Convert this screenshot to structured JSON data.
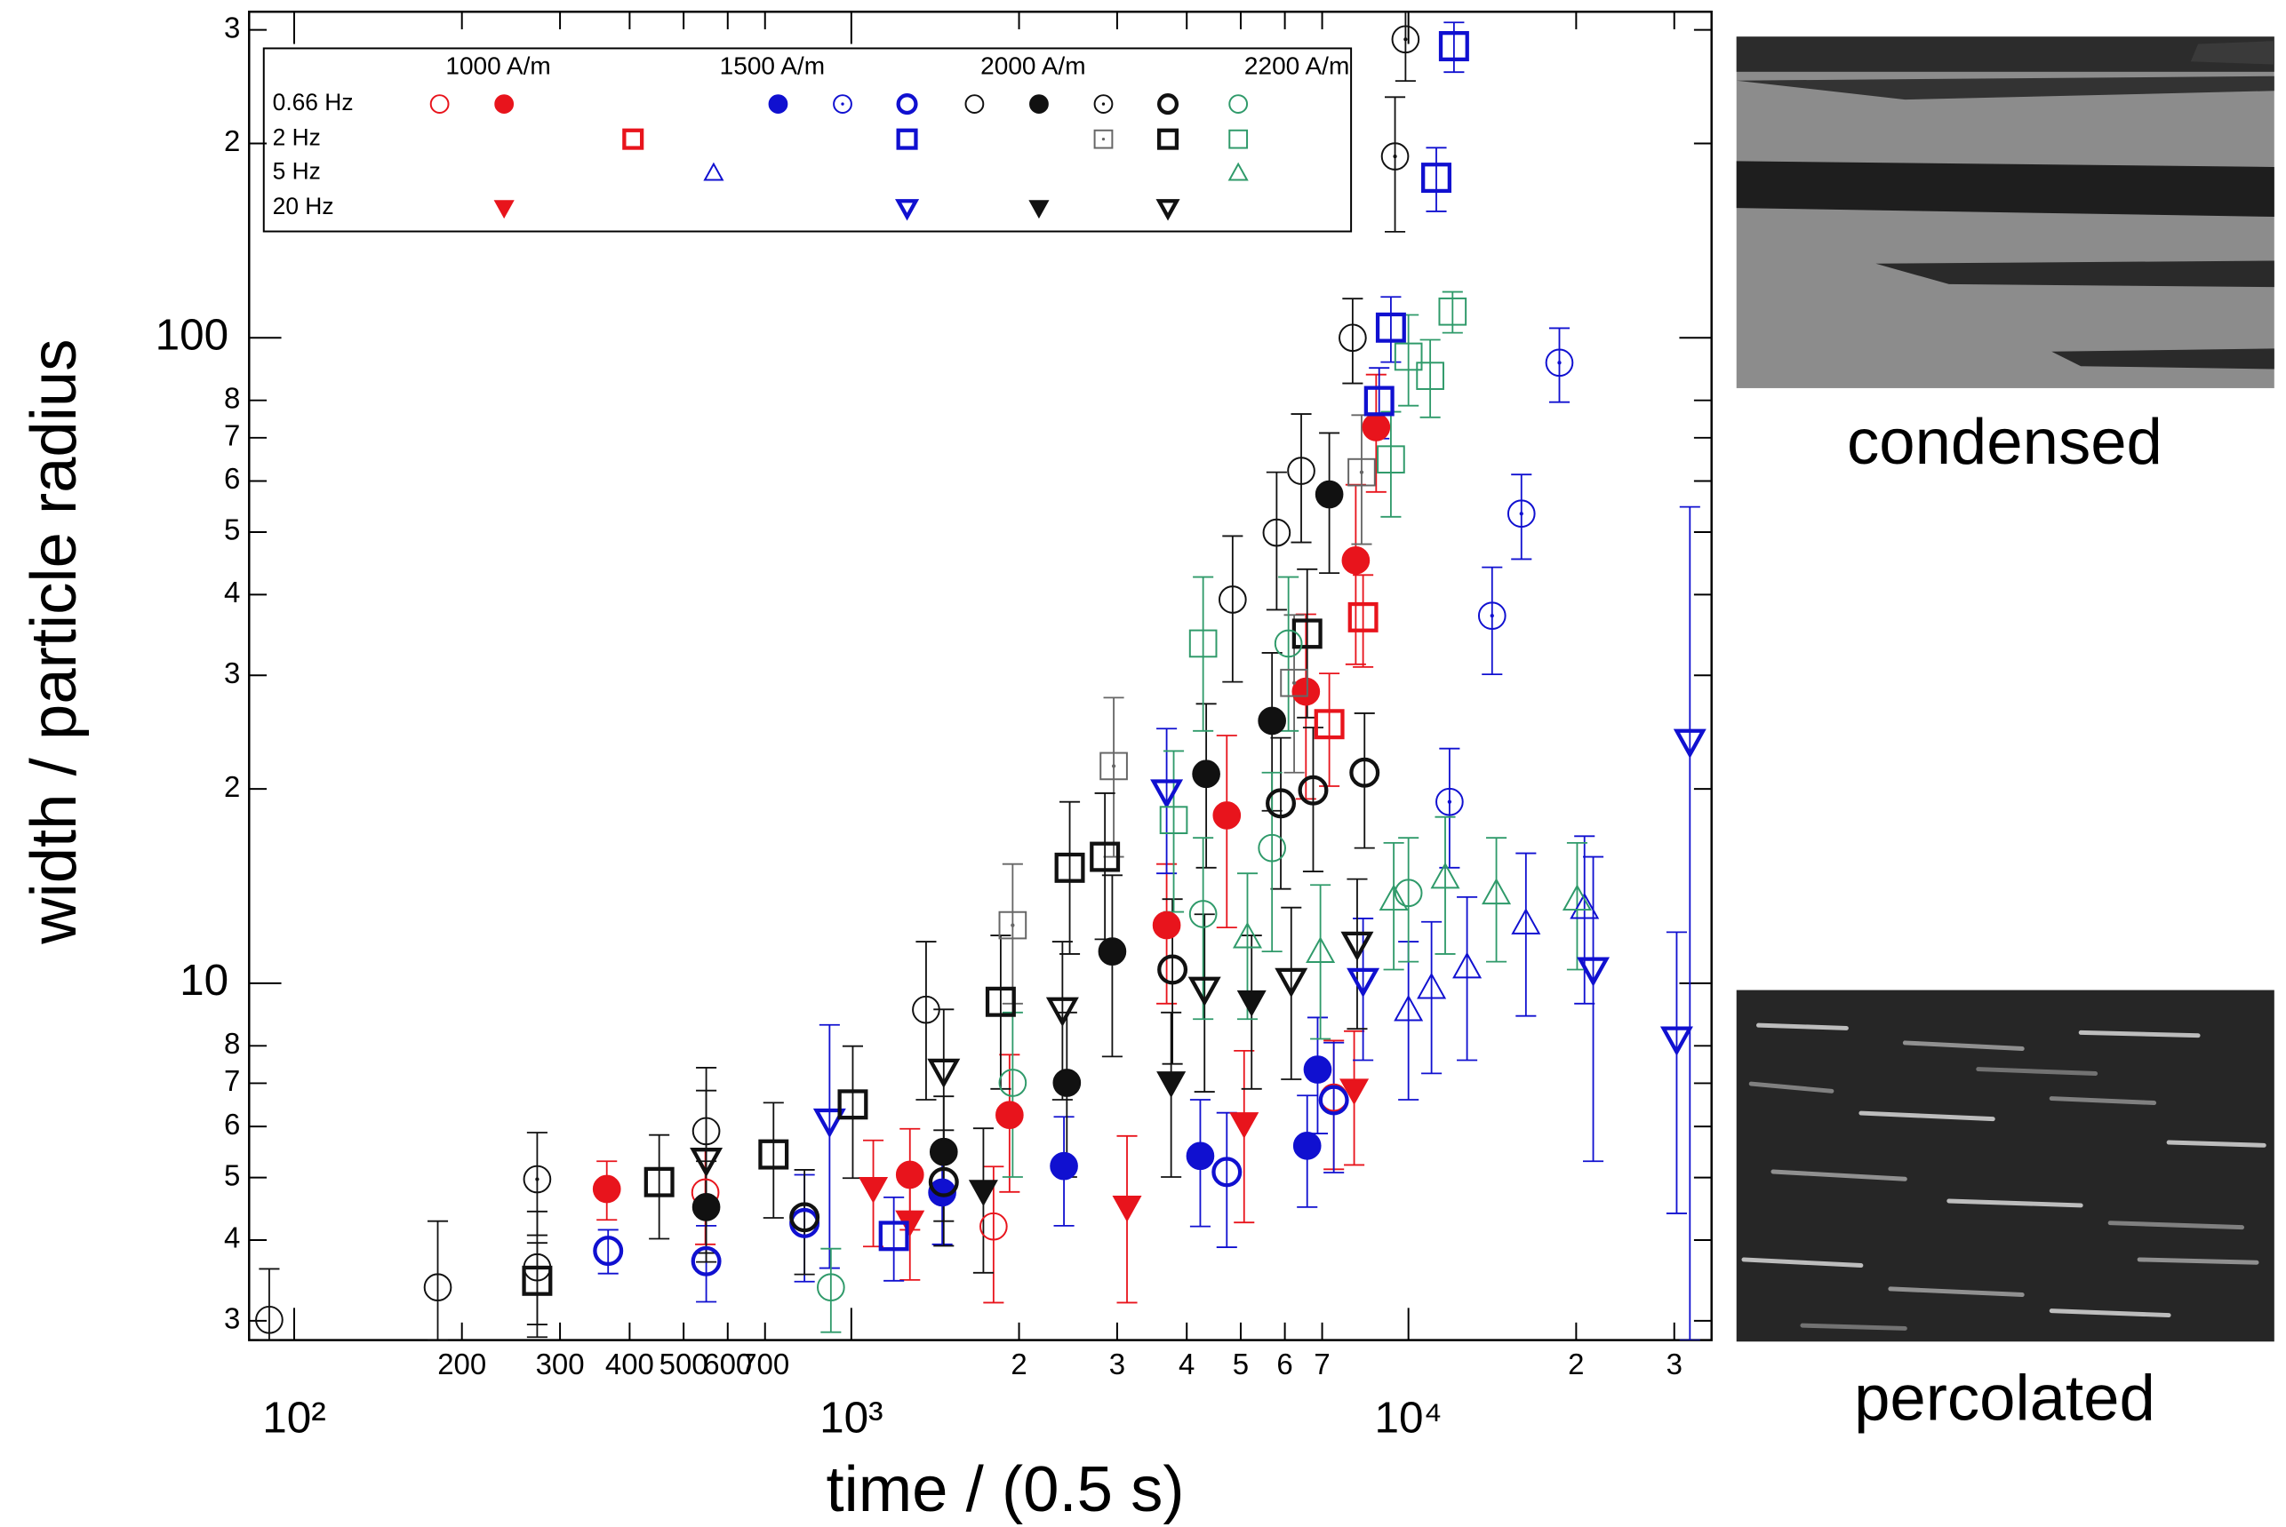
{
  "chart_data": {
    "type": "scatter",
    "x_label": "time / (0.5 s)",
    "y_label": "width / particle radius",
    "xscale": "log",
    "yscale": "log",
    "xlim": [
      83,
      35000
    ],
    "ylim": [
      2.8,
      320
    ],
    "xticks": [
      {
        "value": 100,
        "label": "10²"
      },
      200,
      300,
      400,
      500,
      600,
      700,
      {
        "value": 1000,
        "label": "10³"
      },
      {
        "value": 2000,
        "label": "2"
      },
      {
        "value": 3000,
        "label": "3"
      },
      {
        "value": 4000,
        "label": "4"
      },
      {
        "value": 5000,
        "label": "5"
      },
      {
        "value": 6000,
        "label": "6"
      },
      {
        "value": 7000,
        "label": "7"
      },
      {
        "value": 10000,
        "label": "10⁴"
      },
      {
        "value": 20000,
        "label": "2"
      },
      {
        "value": 30000,
        "label": "3"
      }
    ],
    "yticks": [
      3,
      4,
      5,
      6,
      7,
      8,
      10,
      {
        "value": 20,
        "label": "2"
      },
      {
        "value": 30,
        "label": "3"
      },
      {
        "value": 40,
        "label": "4"
      },
      {
        "value": 50,
        "label": "5"
      },
      {
        "value": 60,
        "label": "6"
      },
      {
        "value": 70,
        "label": "7"
      },
      {
        "value": 80,
        "label": "8"
      },
      100,
      {
        "value": 200,
        "label": "2"
      },
      {
        "value": 300,
        "label": "3"
      }
    ],
    "legend": {
      "fields": [
        "1000 A/m",
        "1500 A/m",
        "2000 A/m",
        "2200 A/m"
      ],
      "frequencies": [
        "0.66 Hz",
        "2 Hz",
        "5 Hz",
        "20 Hz"
      ]
    },
    "series": [
      {
        "field": "1000 A/m",
        "frequency": "0.66 Hz",
        "marker": "circle",
        "style": "filled",
        "color": "#e8141c",
        "x": [
          364,
          1274,
          1923,
          3681,
          4720,
          6546,
          8043,
          8750
        ],
        "values": [
          4.8,
          5.05,
          6.25,
          12.3,
          18.2,
          28.3,
          45.2,
          72.7
        ],
        "errors": [
          0.5,
          0.9,
          1.5,
          3,
          6,
          9,
          14,
          15
        ]
      },
      {
        "field": "1000 A/m",
        "frequency": "0.66 Hz",
        "marker": "circle",
        "style": "thin",
        "color": "#e8141c",
        "x": [
          547,
          1800,
          7345
        ],
        "values": [
          4.74,
          4.2,
          6.65
        ],
        "errors": [
          0.8,
          1.0,
          1.5
        ]
      },
      {
        "field": "1000 A/m",
        "frequency": "2 Hz",
        "marker": "square",
        "style": "bold",
        "color": "#e8141c",
        "x": [
          8290,
          7210
        ],
        "values": [
          36.9,
          25.2
        ],
        "errors": [
          6,
          5
        ]
      },
      {
        "field": "1000 A/m",
        "frequency": "20 Hz",
        "marker": "tri-down",
        "style": "filled",
        "color": "#e8141c",
        "x": [
          1095,
          1274,
          3125,
          5070,
          7990
        ],
        "values": [
          4.81,
          4.27,
          4.5,
          6.06,
          6.83
        ],
        "errors": [
          0.9,
          0.8,
          1.3,
          1.8,
          1.6
        ]
      },
      {
        "field": "1500 A/m",
        "frequency": "0.66 Hz",
        "marker": "circle",
        "style": "filled",
        "color": "#1010d0",
        "x": [
          1456,
          2408,
          4230,
          6580,
          6870
        ],
        "values": [
          4.74,
          5.21,
          5.4,
          5.6,
          7.35
        ],
        "errors": [
          0.8,
          1.0,
          1.2,
          1.1,
          1.5
        ]
      },
      {
        "field": "1500 A/m",
        "frequency": "0.66 Hz",
        "marker": "circle",
        "style": "dot",
        "color": "#1010d0",
        "x": [
          18660,
          15950,
          14130,
          11850
        ],
        "values": [
          91.5,
          53.4,
          37.1,
          19.1
        ],
        "errors": [
          12,
          8,
          7,
          4
        ]
      },
      {
        "field": "1500 A/m",
        "frequency": "0.66 Hz",
        "marker": "circle",
        "style": "bold",
        "color": "#1010d0",
        "x": [
          366,
          549,
          824,
          4720,
          7345
        ],
        "values": [
          3.85,
          3.71,
          4.25,
          5.1,
          6.59
        ],
        "errors": [
          0.3,
          0.5,
          0.8,
          1.2,
          1.5
        ]
      },
      {
        "field": "1500 A/m",
        "frequency": "2 Hz",
        "marker": "square",
        "style": "bold",
        "color": "#1010d0",
        "x": [
          9300,
          11220,
          12070,
          8860,
          1192
        ],
        "values": [
          103.7,
          177,
          283,
          79.8,
          4.06
        ],
        "errors": [
          12,
          20,
          25,
          10,
          0.6
        ]
      },
      {
        "field": "1500 A/m",
        "frequency": "5 Hz",
        "marker": "tri-up",
        "style": "thin",
        "color": "#1010d0",
        "x": [
          10000,
          12740,
          16250,
          20700,
          11000
        ],
        "values": [
          9.1,
          10.6,
          12.4,
          13.1,
          9.85
        ],
        "errors": [
          2.5,
          3,
          3.5,
          3.8,
          2.6
        ]
      },
      {
        "field": "1500 A/m",
        "frequency": "20 Hz",
        "marker": "tri-down",
        "style": "bold",
        "color": "#1010d0",
        "x": [
          32000,
          30300,
          21460,
          8290,
          914,
          3681
        ],
        "values": [
          23.7,
          8.2,
          10.5,
          10.1,
          6.12,
          19.8
        ],
        "errors": [
          31,
          3.8,
          5.2,
          2.5,
          2.5,
          5
        ]
      },
      {
        "field": "2000 A/m",
        "frequency": "0.66 Hz",
        "marker": "circle",
        "style": "thin",
        "color": "#111111",
        "x": [
          90.2,
          181,
          273,
          549,
          1362,
          4835,
          5800,
          6420,
          7940
        ],
        "values": [
          3.01,
          3.38,
          3.63,
          5.9,
          9.1,
          39.3,
          49.9,
          62.2,
          100
        ],
        "errors": [
          0.6,
          0.9,
          0.8,
          1.5,
          2.5,
          10,
          12,
          14,
          15
        ]
      },
      {
        "field": "2000 A/m",
        "frequency": "0.66 Hz",
        "marker": "circle",
        "style": "filled",
        "color": "#111111",
        "x": [
          549,
          1465,
          2437,
          2940,
          4335,
          5690,
          7210
        ],
        "values": [
          4.5,
          5.48,
          7.01,
          11.2,
          21.1,
          25.5,
          57.2
        ],
        "errors": [
          0.8,
          1.2,
          2,
          3.5,
          6,
          7,
          14
        ]
      },
      {
        "field": "2000 A/m",
        "frequency": "0.66 Hz",
        "marker": "circle",
        "style": "dot",
        "color": "#111111",
        "x": [
          273,
          9880,
          9460
        ],
        "values": [
          4.97,
          290,
          191
        ],
        "errors": [
          0.9,
          40,
          45
        ]
      },
      {
        "field": "2000 A/m",
        "frequency": "0.66 Hz",
        "marker": "circle",
        "style": "bold",
        "color": "#111111",
        "x": [
          824,
          1465,
          3770,
          5900,
          6745,
          8340
        ],
        "values": [
          4.34,
          4.92,
          10.5,
          19,
          19.9,
          21.2
        ],
        "errors": [
          0.8,
          1.0,
          3,
          5,
          5,
          5
        ]
      },
      {
        "field": "2000 A/m",
        "frequency": "2 Hz",
        "marker": "square",
        "style": "dot",
        "color": "#666666",
        "x": [
          2958,
          6235,
          8240,
          1948
        ],
        "values": [
          21.7,
          29.2,
          61.9,
          12.3
        ],
        "errors": [
          6,
          8,
          14,
          3
        ]
      },
      {
        "field": "2000 A/m",
        "frequency": "2 Hz",
        "marker": "square",
        "style": "bold",
        "color": "#111111",
        "x": [
          273,
          452,
          725,
          1006,
          2466,
          2852,
          6580,
          1854
        ],
        "values": [
          3.46,
          4.92,
          5.43,
          6.49,
          15.1,
          15.7,
          34.8,
          9.36
        ],
        "errors": [
          0.5,
          0.9,
          1.1,
          1.5,
          4,
          4,
          9,
          2.5
        ]
      },
      {
        "field": "2000 A/m",
        "frequency": "20 Hz",
        "marker": "tri-down",
        "style": "filled",
        "color": "#111111",
        "x": [
          1726,
          3750,
          5230
        ],
        "values": [
          4.76,
          7.01,
          9.36
        ],
        "errors": [
          1.2,
          2,
          2.5
        ]
      },
      {
        "field": "2000 A/m",
        "frequency": "20 Hz",
        "marker": "tri-down",
        "style": "bold",
        "color": "#111111",
        "x": [
          549,
          1465,
          2393,
          4305,
          6160,
          8090
        ],
        "values": [
          5.32,
          7.31,
          9.1,
          9.79,
          10.1,
          11.5
        ],
        "errors": [
          1.5,
          1.8,
          2.5,
          3,
          3,
          3
        ]
      },
      {
        "field": "2200 A/m",
        "frequency": "0.66 Hz",
        "marker": "circle",
        "style": "thin",
        "color": "#2f9a6a",
        "x": [
          6090,
          5690,
          4280,
          1948,
          919,
          10000
        ],
        "values": [
          33.6,
          16.2,
          12.8,
          7.01,
          3.38,
          13.8
        ],
        "errors": [
          9,
          5,
          4,
          2,
          0.5,
          3
        ]
      },
      {
        "field": "2200 A/m",
        "frequency": "2 Hz",
        "marker": "square",
        "style": "thin",
        "color": "#2f9a6a",
        "x": [
          12000,
          10940,
          10000,
          9300,
          4280,
          3790
        ],
        "values": [
          109.8,
          87.3,
          93.5,
          64.8,
          33.6,
          17.9
        ],
        "errors": [
          8,
          12,
          15,
          12,
          9,
          5
        ]
      },
      {
        "field": "2200 A/m",
        "frequency": "5 Hz",
        "marker": "tri-up",
        "style": "thin",
        "color": "#2f9a6a",
        "x": [
          9410,
          11640,
          14380,
          20080,
          6950,
          5140
        ],
        "values": [
          13.5,
          14.6,
          13.8,
          13.5,
          11.2,
          11.8
        ],
        "errors": [
          3,
          3.5,
          3,
          3,
          3,
          3
        ]
      }
    ]
  },
  "panels": [
    {
      "label": "condensed"
    },
    {
      "label": "percolated"
    }
  ]
}
